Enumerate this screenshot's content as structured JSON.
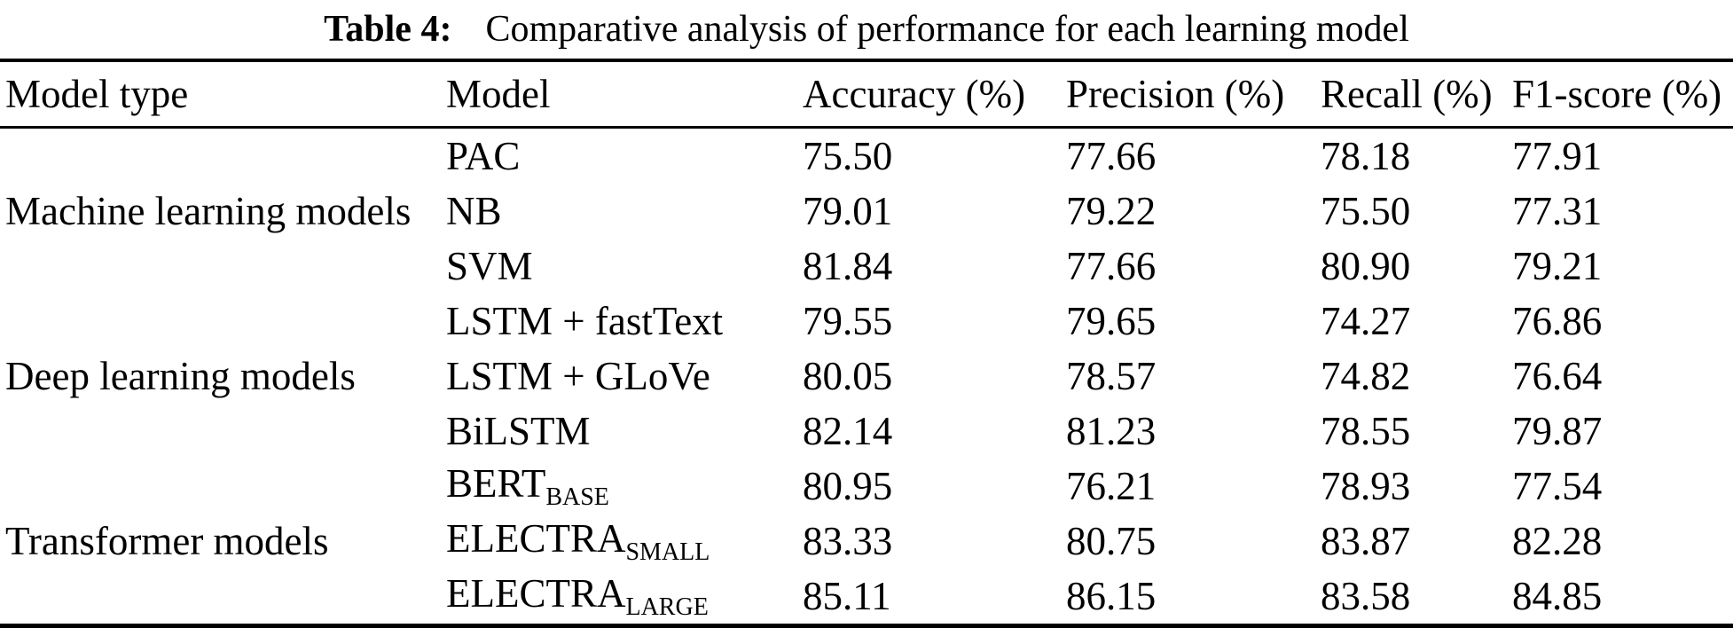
{
  "colors": {
    "background": "#ffffff",
    "text": "#000000",
    "rule": "#000000"
  },
  "caption": {
    "label": "Table 4:",
    "text": "Comparative analysis of performance for each learning model"
  },
  "table": {
    "headers": [
      "Model type",
      "Model",
      "Accuracy (%)",
      "Precision (%)",
      "Recall (%)",
      "F1-score (%)"
    ],
    "groups": [
      {
        "type": "Machine learning models",
        "rows": [
          {
            "model": "PAC",
            "sub": "",
            "accuracy": "75.50",
            "precision": "77.66",
            "recall": "78.18",
            "f1": "77.91"
          },
          {
            "model": "NB",
            "sub": "",
            "accuracy": "79.01",
            "precision": "79.22",
            "recall": "75.50",
            "f1": "77.31"
          },
          {
            "model": "SVM",
            "sub": "",
            "accuracy": "81.84",
            "precision": "77.66",
            "recall": "80.90",
            "f1": "79.21"
          }
        ]
      },
      {
        "type": "Deep learning models",
        "rows": [
          {
            "model": "LSTM + fastText",
            "sub": "",
            "accuracy": "79.55",
            "precision": "79.65",
            "recall": "74.27",
            "f1": "76.86"
          },
          {
            "model": "LSTM + GLoVe",
            "sub": "",
            "accuracy": "80.05",
            "precision": "78.57",
            "recall": "74.82",
            "f1": "76.64"
          },
          {
            "model": "BiLSTM",
            "sub": "",
            "accuracy": "82.14",
            "precision": "81.23",
            "recall": "78.55",
            "f1": "79.87"
          }
        ]
      },
      {
        "type": "Transformer models",
        "rows": [
          {
            "model": "BERT",
            "sub": "BASE",
            "accuracy": "80.95",
            "precision": "76.21",
            "recall": "78.93",
            "f1": "77.54"
          },
          {
            "model": "ELECTRA",
            "sub": "SMALL",
            "accuracy": "83.33",
            "precision": "80.75",
            "recall": "83.87",
            "f1": "82.28"
          },
          {
            "model": "ELECTRA",
            "sub": "LARGE",
            "accuracy": "85.11",
            "precision": "86.15",
            "recall": "83.58",
            "f1": "84.85"
          }
        ]
      }
    ]
  }
}
